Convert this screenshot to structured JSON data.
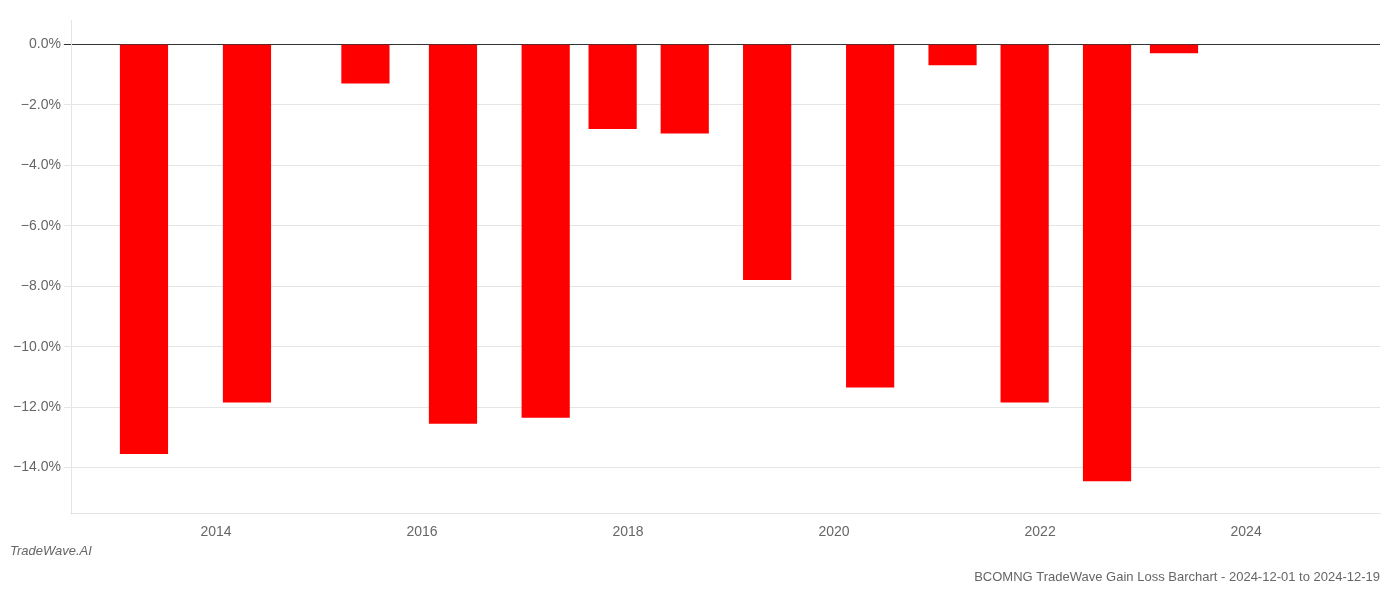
{
  "chart_data": {
    "type": "bar",
    "title": "BCOMNG TradeWave Gain Loss Barchart - 2024-12-01 to 2024-12-19",
    "annotations": [
      "TradeWave.AI"
    ],
    "x": [
      2013.3,
      2014.3,
      2015.45,
      2016.3,
      2017.2,
      2017.85,
      2018.55,
      2019.35,
      2020.35,
      2021.15,
      2021.85,
      2022.65,
      2023.3
    ],
    "values": [
      -0.1355,
      -0.1185,
      -0.013,
      -0.1255,
      -0.1235,
      -0.028,
      -0.0295,
      -0.078,
      -0.1135,
      -0.007,
      -0.1185,
      -0.1445,
      -0.003
    ],
    "color": "#ff0000",
    "xlim": [
      2012.6,
      2025.3
    ],
    "xticks": [
      2014,
      2016,
      2018,
      2020,
      2022,
      2024
    ],
    "ylim": [
      -0.155,
      0.008
    ],
    "yticks": [
      {
        "value": -0.14,
        "label": "−14.0%"
      },
      {
        "value": -0.12,
        "label": "−12.0%"
      },
      {
        "value": -0.1,
        "label": "−10.0%"
      },
      {
        "value": -0.08,
        "label": "−8.0%"
      },
      {
        "value": -0.06,
        "label": "−6.0%"
      },
      {
        "value": -0.04,
        "label": "−4.0%"
      },
      {
        "value": -0.02,
        "label": "−2.0%"
      },
      {
        "value": 0.0,
        "label": "0.0%"
      }
    ],
    "grid": "y"
  }
}
